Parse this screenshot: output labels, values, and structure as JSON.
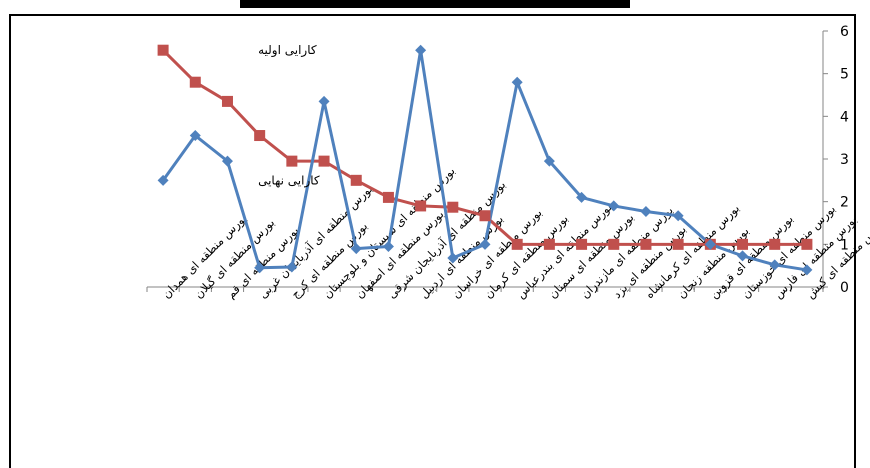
{
  "chart_data": {
    "type": "line",
    "title": "",
    "xlabel": "",
    "ylabel": "",
    "ylim": [
      0,
      6
    ],
    "yticks": [
      "0",
      "1",
      "2",
      "3",
      "4",
      "5",
      "6"
    ],
    "y_axis_side": "right",
    "grid": false,
    "categories": [
      "بورس منطقه ای همدان",
      "بورس منطقه ای گیلان",
      "بورس منطقه ای قم",
      "بورس منطقه ای آذربایجان غربی",
      "بورس منطقه ای کرج",
      "بورس منطقه ای سیستان و بلوچستان",
      "بورس منطقه ای اصفهان",
      "بورس منطقه ای آذربایجان شرقی",
      "بورس منطقه ای اردبیل",
      "بورس منطقه ای خراسان",
      "بورس منطقه ای کرمان",
      "بورس منطقه ای بندرعباس",
      "بورس منطقه ای سمنان",
      "بورس منطقه ای مازندران",
      "بورس منطقه ای یزد",
      "بورس منطقه ای کرمانشاه",
      "بورس منطقه زنجان",
      "بورس منطقه ای قزوین",
      "بورس منطقه ای خوزستان",
      "بورس منطقه ای فارس",
      "بورس منطقه ای کیش"
    ],
    "series": [
      {
        "name": "کارایی اولیه",
        "color": "#c0504d",
        "marker": "square",
        "values": [
          5.55,
          4.8,
          4.35,
          3.55,
          2.95,
          2.95,
          2.5,
          2.1,
          1.9,
          1.87,
          1.67,
          1.0,
          1.0,
          1.0,
          1.0,
          1.0,
          1.0,
          1.0,
          1.0,
          1.0,
          1.0
        ]
      },
      {
        "name": "کارایی نهایی",
        "color": "#4f81bd",
        "marker": "diamond",
        "values": [
          2.5,
          3.55,
          2.95,
          0.45,
          0.47,
          4.35,
          0.9,
          0.95,
          5.55,
          0.68,
          1.0,
          4.8,
          2.95,
          2.1,
          1.9,
          1.77,
          1.67,
          1.0,
          0.73,
          0.52,
          0.4
        ]
      }
    ]
  }
}
